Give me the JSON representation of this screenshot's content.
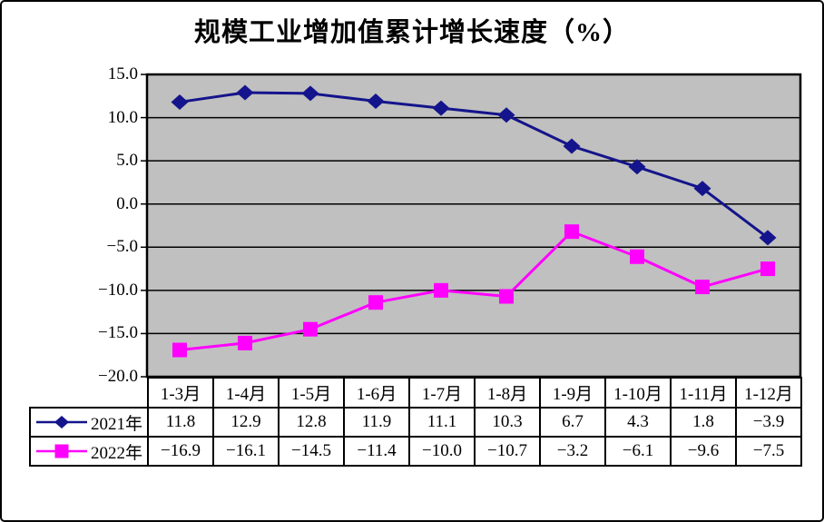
{
  "title": "规模工业增加值累计增长速度（%）",
  "colors": {
    "plot_background": "#c0c0c0",
    "gridline": "#000000",
    "axis_text": "#000000",
    "frame_border": "#000000",
    "series_2021": "#14148c",
    "series_2022": "#ff00ff"
  },
  "y_axis": {
    "tick_labels": [
      "15.0",
      "10.0",
      "5.0",
      "0.0",
      "-5.0",
      "-10.0",
      "-15.0",
      "-20.0"
    ]
  },
  "chart_data": {
    "type": "line",
    "title": "规模工业增加值累计增长速度（%）",
    "categories": [
      "1-3月",
      "1-4月",
      "1-5月",
      "1-6月",
      "1-7月",
      "1-8月",
      "1-9月",
      "1-10月",
      "1-11月",
      "1-12月"
    ],
    "series": [
      {
        "name": "2021年",
        "marker": "diamond",
        "color": "#14148c",
        "values": [
          11.8,
          12.9,
          12.8,
          11.9,
          11.1,
          10.3,
          6.7,
          4.3,
          1.8,
          -3.9
        ]
      },
      {
        "name": "2022年",
        "marker": "square",
        "color": "#ff00ff",
        "values": [
          -16.9,
          -16.1,
          -14.5,
          -11.4,
          -10.0,
          -10.7,
          -3.2,
          -6.1,
          -9.6,
          -7.5
        ]
      }
    ],
    "xlabel": "",
    "ylabel": "",
    "ylim": [
      -20,
      15
    ],
    "ytick_step": 5,
    "grid": true,
    "plot_area_background": "#c0c0c0",
    "legend_position": "data-table-left",
    "data_table": true
  }
}
